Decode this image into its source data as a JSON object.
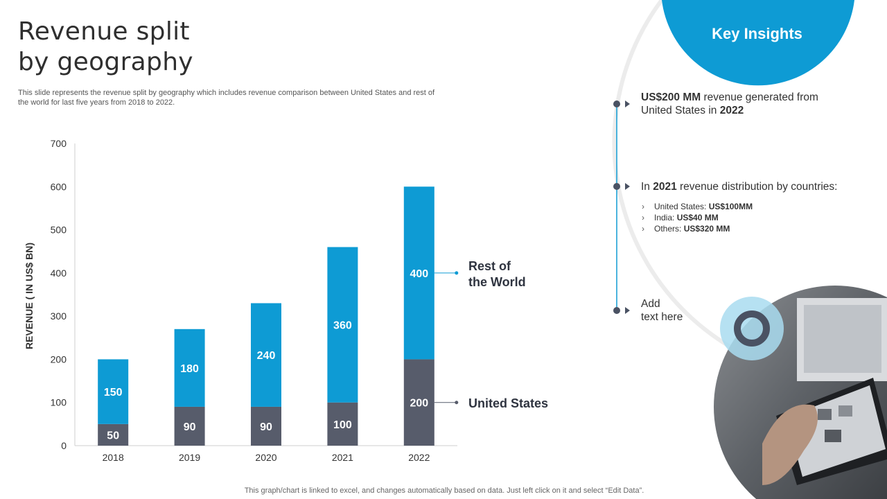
{
  "title_line1": "Revenue split",
  "title_line2": "by geography",
  "subtitle": "This slide represents the revenue split by geography which includes revenue comparison between United States and rest of the world for last five years from 2018 to 2022.",
  "footer": "This graph/chart is linked to excel, and changes automatically based on data. Just left click on it and select “Edit Data”.",
  "colors": {
    "united_states": "#575c6b",
    "rest_of_world": "#0e9bd4",
    "accent": "#0e9bd4"
  },
  "chart_data": {
    "type": "bar",
    "stacked": true,
    "categories": [
      "2018",
      "2019",
      "2020",
      "2021",
      "2022"
    ],
    "series": [
      {
        "name": "United States",
        "values": [
          50,
          90,
          90,
          100,
          200
        ]
      },
      {
        "name": "Rest of the World",
        "values": [
          150,
          180,
          240,
          360,
          400
        ]
      }
    ],
    "ylabel": "REVENUE ( IN US$ BN)",
    "xlabel": "",
    "ylim": [
      0,
      700
    ],
    "yticks": [
      0,
      100,
      200,
      300,
      400,
      500,
      600,
      700
    ],
    "grid": false,
    "series_labels": {
      "rest_line1": "Rest of",
      "rest_line2": "the World",
      "us": "United States"
    }
  },
  "key_insights": {
    "title": "Key Insights",
    "item1_bold": "US$200 MM",
    "item1_text": " revenue generated from",
    "item1_line2": "United States in ",
    "item1_year": "2022",
    "item2_pre": "In ",
    "item2_year": "2021",
    "item2_text": " revenue distribution by countries:",
    "list": [
      {
        "label": "United States: ",
        "value": "US$100MM"
      },
      {
        "label": "India: ",
        "value": "US$40 MM"
      },
      {
        "label": "Others: ",
        "value": "US$320 MM"
      }
    ],
    "item3_line1": "Add",
    "item3_line2": "text here"
  },
  "photo_icon": "laptop-photo-icon"
}
